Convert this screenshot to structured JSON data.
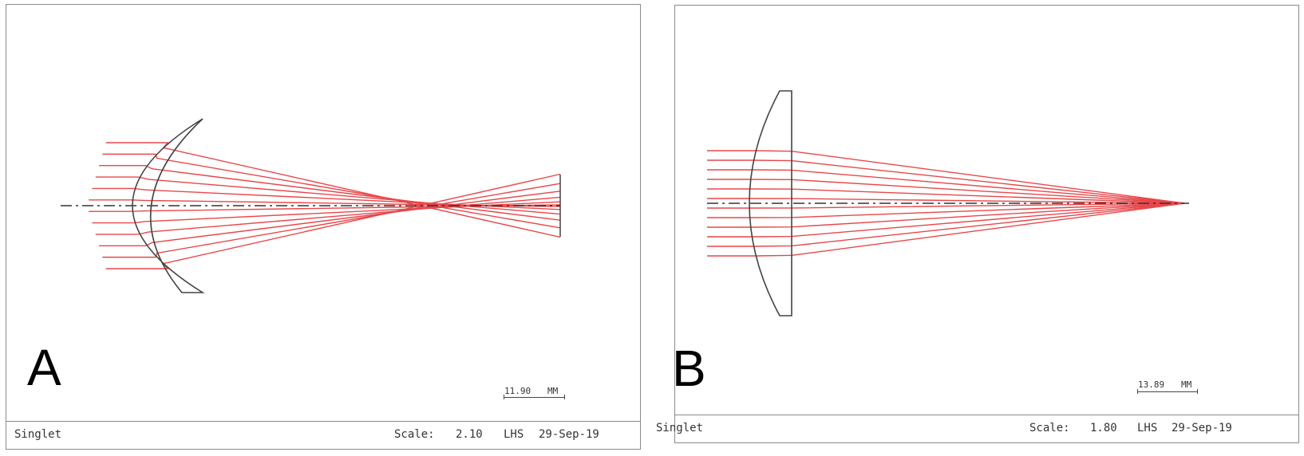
{
  "panels": [
    {
      "label": "A",
      "title": "Singlet",
      "scale_label": "Scale:",
      "scale_value": "2.10",
      "handedness": "LHS",
      "date": "29-Sep-19",
      "scalebar_value": "11.90",
      "scalebar_unit": "MM",
      "lens_type": "meniscus",
      "ray_count": 12
    },
    {
      "label": "B",
      "title": "Singlet",
      "scale_label": "Scale:",
      "scale_value": "1.80",
      "handedness": "LHS",
      "date": "29-Sep-19",
      "scalebar_value": "13.89",
      "scalebar_unit": "MM",
      "lens_type": "plano-convex",
      "ray_count": 12
    }
  ],
  "colors": {
    "ray": "#e8474a",
    "lens": "#444444",
    "axis": "#333333",
    "frame": "#8a8a8a"
  }
}
